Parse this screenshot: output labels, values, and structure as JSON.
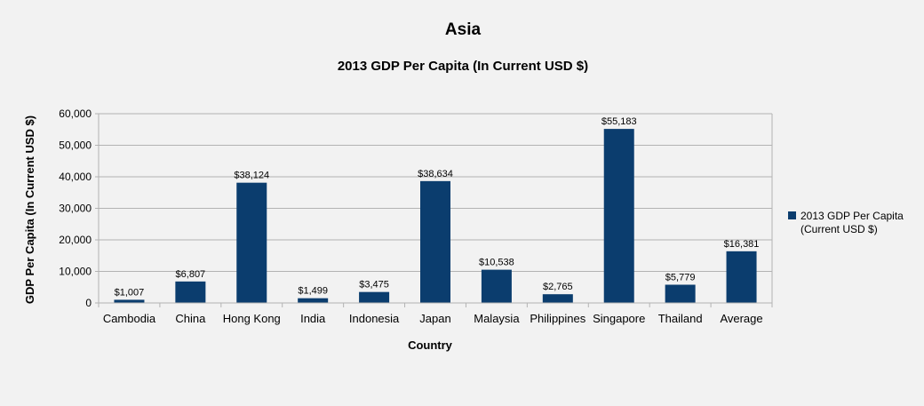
{
  "chart_data": {
    "type": "bar",
    "title": "Asia",
    "subtitle": "2013 GDP Per Capita (In Current USD $)",
    "xlabel": "Country",
    "ylabel": "GDP Per Capita (In Current USD $)",
    "ylim": [
      0,
      60000
    ],
    "yticks": [
      0,
      10000,
      20000,
      30000,
      40000,
      50000,
      60000
    ],
    "ytick_labels": [
      "0",
      "10,000",
      "20,000",
      "30,000",
      "40,000",
      "50,000",
      "60,000"
    ],
    "grid": true,
    "legend_position": "right",
    "categories": [
      "Cambodia",
      "China",
      "Hong Kong",
      "India",
      "Indonesia",
      "Japan",
      "Malaysia",
      "Philippines",
      "Singapore",
      "Thailand",
      "Average"
    ],
    "series": [
      {
        "name": "2013 GDP Per Capita (Current USD $)",
        "legend_lines": [
          "2013 GDP Per Capita",
          "(Current USD $)"
        ],
        "color": "#0b3d6e",
        "values": [
          1007,
          6807,
          38124,
          1499,
          3475,
          38634,
          10538,
          2765,
          55183,
          5779,
          16381
        ],
        "data_labels": [
          "$1,007",
          "$6,807",
          "$38,124",
          "$1,499",
          "$3,475",
          "$38,634",
          "$10,538",
          "$2,765",
          "$55,183",
          "$5,779",
          "$16,381"
        ]
      }
    ]
  }
}
